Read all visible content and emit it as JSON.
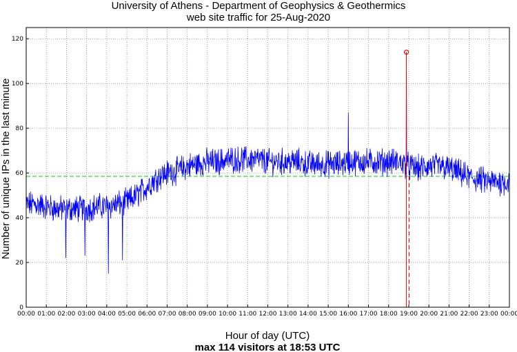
{
  "chart_data": {
    "type": "line",
    "title": "University of Athens - Department of Geophysics & Geothermics",
    "subtitle": "web site traffic for 25-Aug-2020",
    "xlabel": "Hour of day (UTC)",
    "ylabel": "Number of unique IPs in the last minute",
    "annotation": "max 114 visitors at 18:53 UTC",
    "x_tick_labels": [
      "00:00",
      "01:00",
      "02:00",
      "03:00",
      "04:00",
      "05:00",
      "06:00",
      "07:00",
      "08:00",
      "09:00",
      "10:00",
      "11:00",
      "12:00",
      "13:00",
      "14:00",
      "15:00",
      "16:00",
      "17:00",
      "18:00",
      "19:00",
      "20:00",
      "21:00",
      "22:00",
      "23:00",
      "00:00"
    ],
    "y_tick_labels": [
      "0",
      "20",
      "40",
      "60",
      "80",
      "100",
      "120"
    ],
    "xlim_hours": [
      0,
      24
    ],
    "ylim": [
      0,
      125
    ],
    "grid": true,
    "average": 58.5,
    "max": {
      "time": "18:53",
      "value": 114
    },
    "series": [
      {
        "color": "#0000ff",
        "x_hours": [
          0,
          0.5,
          1,
          1.5,
          2,
          2.5,
          3,
          3.5,
          4,
          4.5,
          5,
          5.5,
          6,
          6.5,
          7,
          7.5,
          8,
          8.5,
          9,
          9.5,
          10,
          10.5,
          11,
          11.5,
          12,
          12.5,
          13,
          13.5,
          14,
          14.5,
          15,
          15.5,
          16,
          16.5,
          17,
          17.5,
          18,
          18.5,
          19,
          19.5,
          20,
          20.5,
          21,
          21.5,
          22,
          22.5,
          23,
          23.5,
          24
        ],
        "values": [
          46,
          46,
          45,
          44,
          44,
          44,
          44,
          45,
          45,
          46,
          47,
          50,
          54,
          58,
          60,
          61,
          63,
          64,
          65,
          65,
          66,
          66,
          66,
          66,
          65,
          65,
          65,
          65,
          64,
          64,
          64,
          64,
          65,
          65,
          65,
          65,
          65,
          65,
          63,
          62,
          63,
          63,
          62,
          60,
          58,
          57,
          56,
          56,
          56
        ]
      }
    ],
    "spikes": [
      {
        "x_hours": 1.97,
        "value": 22
      },
      {
        "x_hours": 2.92,
        "value": 23
      },
      {
        "x_hours": 4.08,
        "value": 15
      },
      {
        "x_hours": 4.78,
        "value": 21
      },
      {
        "x_hours": 16.0,
        "value": 87
      },
      {
        "x_hours": 18.88,
        "value": 114
      }
    ],
    "colors": {
      "series": "#0000ff",
      "average": "#00cc00",
      "max_marker": "#ff0000",
      "grid": "#888888"
    }
  }
}
